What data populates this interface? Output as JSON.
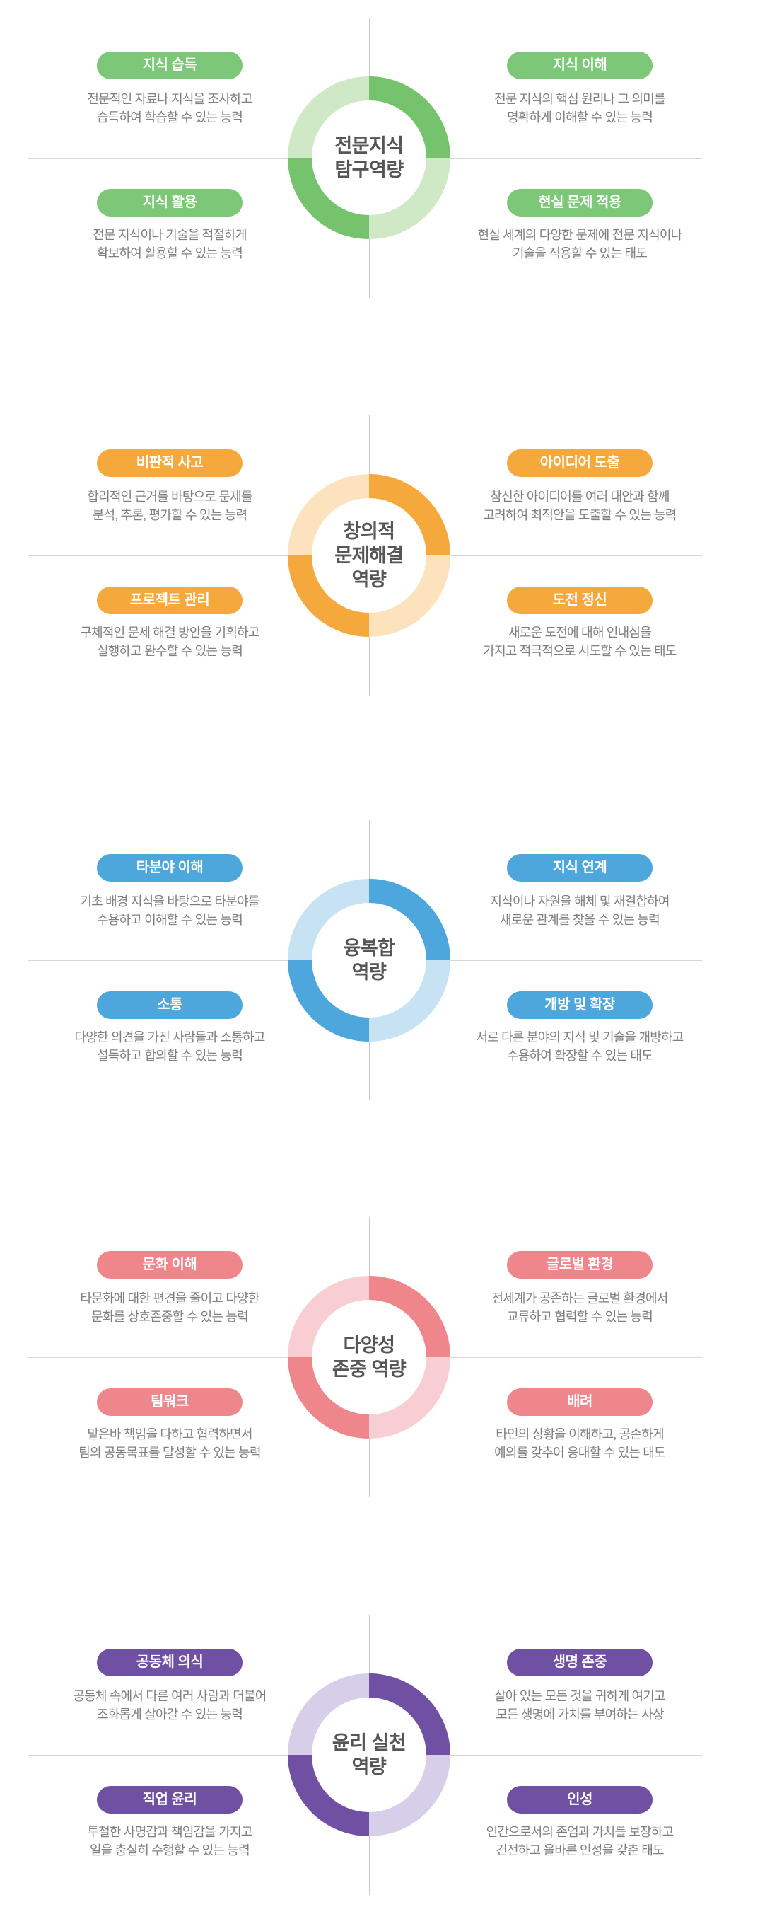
{
  "page": {
    "background": "#ffffff",
    "divider_line_color": "#d0d0d0",
    "title_text_color": "#565656",
    "description_text_color": "#7f7f7f"
  },
  "sections": [
    {
      "title": "전문지식\n탐구역량",
      "colors": {
        "accent": "#7cc878",
        "ring_dark": "#76c36e",
        "ring_light": "#cfe8c6"
      },
      "items": {
        "top_left": {
          "label": "지식 습득",
          "description": "전문적인 자료나 지식을 조사하고\n습득하여 학습할 수 있는 능력"
        },
        "top_right": {
          "label": "지식 이해",
          "description": "전문 지식의 핵심 원리나 그 의미를\n명확하게 이해할 수 있는 능력"
        },
        "bottom_left": {
          "label": "지식 활용",
          "description": "전문 지식이나 기술을 적절하게\n확보하여 활용할 수 있는 능력"
        },
        "bottom_right": {
          "label": "현실 문제 적용",
          "description": "현실 세계의 다양한 문제에 전문 지식이나\n기술을 적용할 수 있는 태도"
        }
      }
    },
    {
      "title": "창의적\n문제해결\n역량",
      "colors": {
        "accent": "#f5a83c",
        "ring_dark": "#f5a83c",
        "ring_light": "#fce3bd"
      },
      "items": {
        "top_left": {
          "label": "비판적 사고",
          "description": "합리적인 근거를 바탕으로 문제를\n분석, 추론, 평가할 수 있는 능력"
        },
        "top_right": {
          "label": "아이디어 도출",
          "description": "참신한 아이디어를 여러 대안과 함께\n고려하여 최적안을 도출할 수 있는 능력"
        },
        "bottom_left": {
          "label": "프로젝트 관리",
          "description": "구체적인 문제 해결 방안을 기획하고\n실행하고 완수할 수 있는 능력"
        },
        "bottom_right": {
          "label": "도전 정신",
          "description": "새로운 도전에 대해 인내심을\n가지고 적극적으로 시도할 수 있는 태도"
        }
      }
    },
    {
      "title": "융복합\n역량",
      "colors": {
        "accent": "#4da6dc",
        "ring_dark": "#4da6dc",
        "ring_light": "#c7e2f3"
      },
      "items": {
        "top_left": {
          "label": "타분야 이해",
          "description": "기초 배경 지식을 바탕으로 타분야를\n수용하고 이해할 수 있는 능력"
        },
        "top_right": {
          "label": "지식 연계",
          "description": "지식이나 자원을 해체 및 재결합하여\n새로운 관계를 찾을 수 있는 능력"
        },
        "bottom_left": {
          "label": "소통",
          "description": "다양한 의견을 가진 사람들과 소통하고\n설득하고 합의할 수 있는 능력"
        },
        "bottom_right": {
          "label": "개방 및 확장",
          "description": "서로 다른 분야의 지식 및 기술을 개방하고\n수용하여 확장할 수 있는 태도"
        }
      }
    },
    {
      "title": "다양성\n존중 역량",
      "colors": {
        "accent": "#ee868b",
        "ring_dark": "#ee868b",
        "ring_light": "#f8ced2"
      },
      "items": {
        "top_left": {
          "label": "문화 이해",
          "description": "타문화에 대한 편견을 줄이고 다양한\n문화를 상호존중할 수 있는 능력"
        },
        "top_right": {
          "label": "글로벌 환경",
          "description": "전세계가 공존하는 글로벌 환경에서\n교류하고 협력할 수 있는 능력"
        },
        "bottom_left": {
          "label": "팀워크",
          "description": "맡은바 책임을 다하고 협력하면서\n팀의 공동목표를 달성할 수 있는 능력"
        },
        "bottom_right": {
          "label": "배려",
          "description": "타인의 상황을 이해하고, 공손하게\n예의를 갖추어 응대할 수 있는 태도"
        }
      }
    },
    {
      "title": "윤리 실천\n역량",
      "colors": {
        "accent": "#6f50a2",
        "ring_dark": "#6f50a2",
        "ring_light": "#d7cfe9"
      },
      "items": {
        "top_left": {
          "label": "공동체 의식",
          "description": "공동체 속에서 다른 여러 사람과 더불어\n조화롭게 살아갈 수 있는 능력"
        },
        "top_right": {
          "label": "생명 존중",
          "description": "살아 있는 모든 것을 귀하게 여기고\n모든 생명에 가치를 부여하는 사상"
        },
        "bottom_left": {
          "label": "직업 윤리",
          "description": "투철한 사명감과 책임감을 가지고\n일을 충실히 수행할 수 있는 능력"
        },
        "bottom_right": {
          "label": "인성",
          "description": "인간으로서의 존엄과 가치를 보장하고\n건전하고 올바른 인성을 갖춘 태도"
        }
      }
    }
  ]
}
